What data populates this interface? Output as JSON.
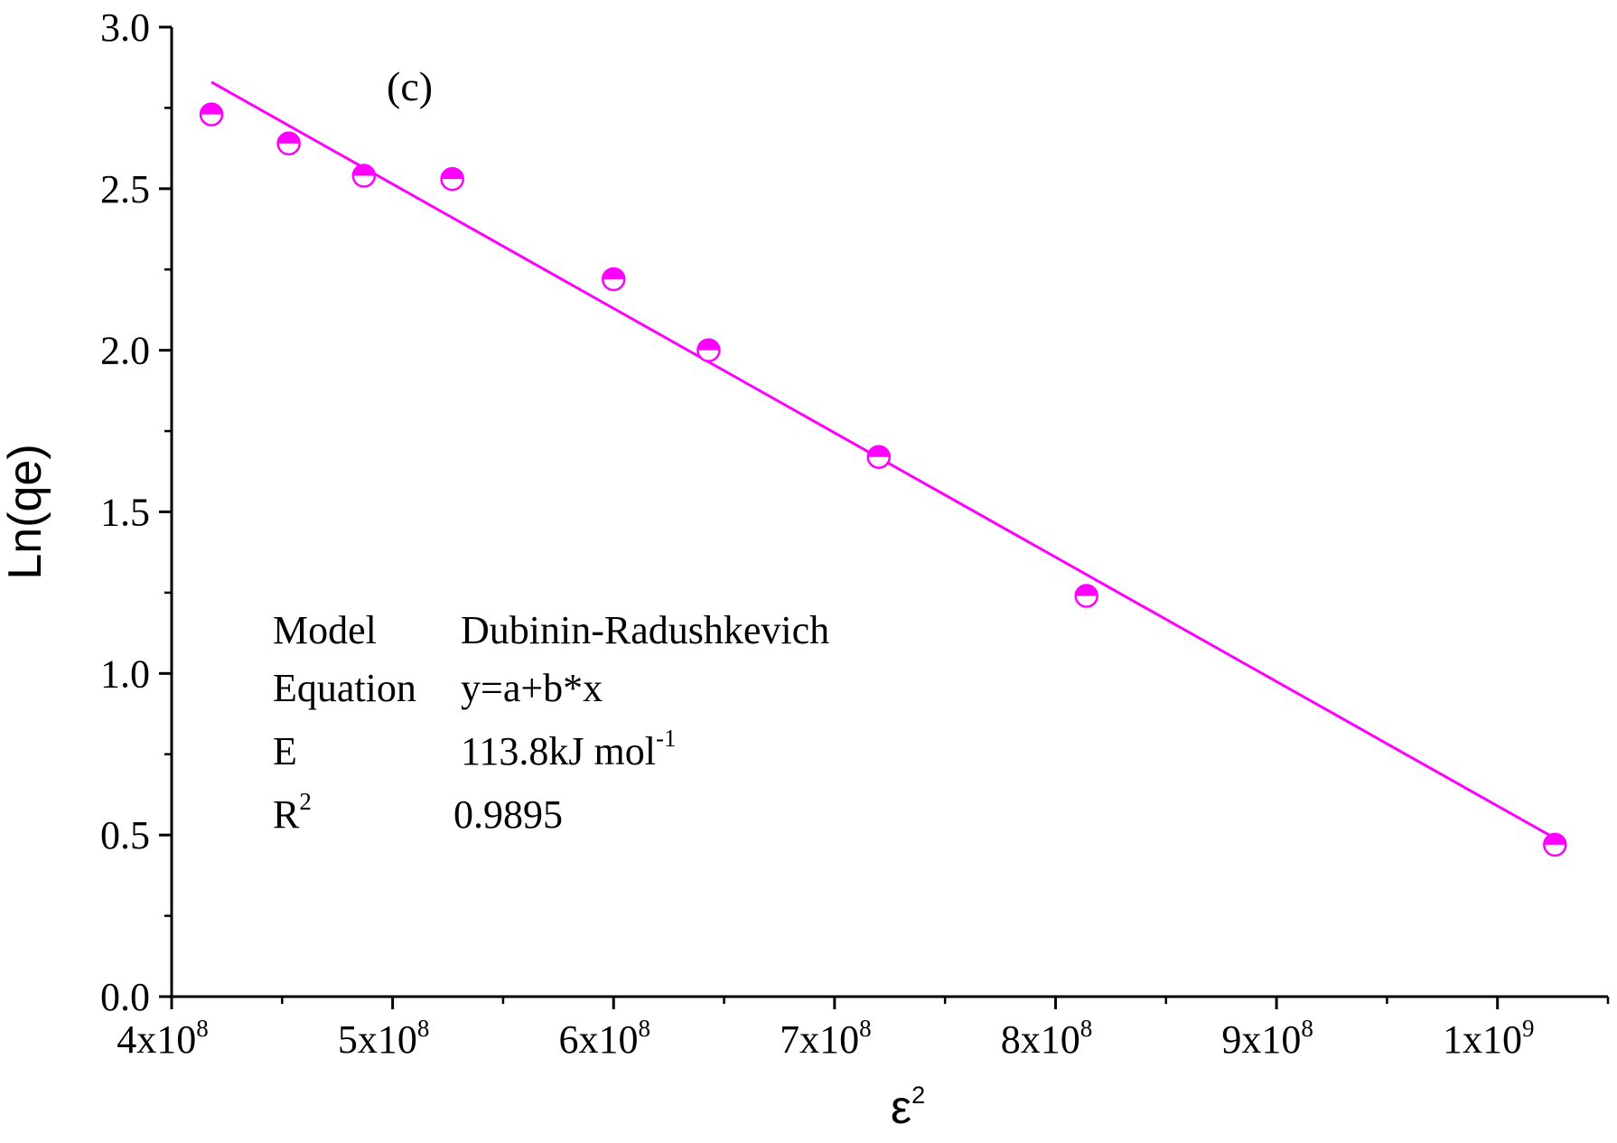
{
  "chart_data": {
    "type": "scatter",
    "panel_label": "(c)",
    "xlabel": "ε",
    "xlabel_sup": "2",
    "ylabel": "Ln(qe)",
    "xlim": [
      400000000,
      1050000000
    ],
    "ylim": [
      0.0,
      3.0
    ],
    "grid": false,
    "x_ticks": [
      {
        "value": 400000000,
        "base": "4x10",
        "exp": "8"
      },
      {
        "value": 500000000,
        "base": "5x10",
        "exp": "8"
      },
      {
        "value": 600000000,
        "base": "6x10",
        "exp": "8"
      },
      {
        "value": 700000000,
        "base": "7x10",
        "exp": "8"
      },
      {
        "value": 800000000,
        "base": "8x10",
        "exp": "8"
      },
      {
        "value": 900000000,
        "base": "9x10",
        "exp": "8"
      },
      {
        "value": 1000000000,
        "base": "1x10",
        "exp": "9"
      }
    ],
    "y_ticks": [
      "0.0",
      "0.5",
      "1.0",
      "1.5",
      "2.0",
      "2.5",
      "3.0"
    ],
    "series": [
      {
        "marker_color": "#ff00ff",
        "x": [
          418000000,
          453000000,
          487000000,
          527000000,
          600000000,
          643000000,
          720000000,
          814000000,
          1026000000
        ],
        "y": [
          2.73,
          2.64,
          2.54,
          2.53,
          2.22,
          2.0,
          1.67,
          1.24,
          0.47
        ]
      }
    ],
    "fit_line": {
      "color": "#ff00ff",
      "x": [
        418000000,
        1026000000
      ],
      "y": [
        2.83,
        0.49
      ]
    },
    "info_table": [
      {
        "key": "Model",
        "key_sup": "",
        "value": "Dubinin-Radushkevich",
        "value_sup": ""
      },
      {
        "key": "Equation",
        "key_sup": "",
        "value": "y=a+b*x",
        "value_sup": ""
      },
      {
        "key": "E",
        "key_sup": "",
        "value": "113.8kJ mol",
        "value_sup": "-1"
      },
      {
        "key": "R",
        "key_sup": "2",
        "value": "0.9895",
        "value_sup": ""
      }
    ]
  }
}
